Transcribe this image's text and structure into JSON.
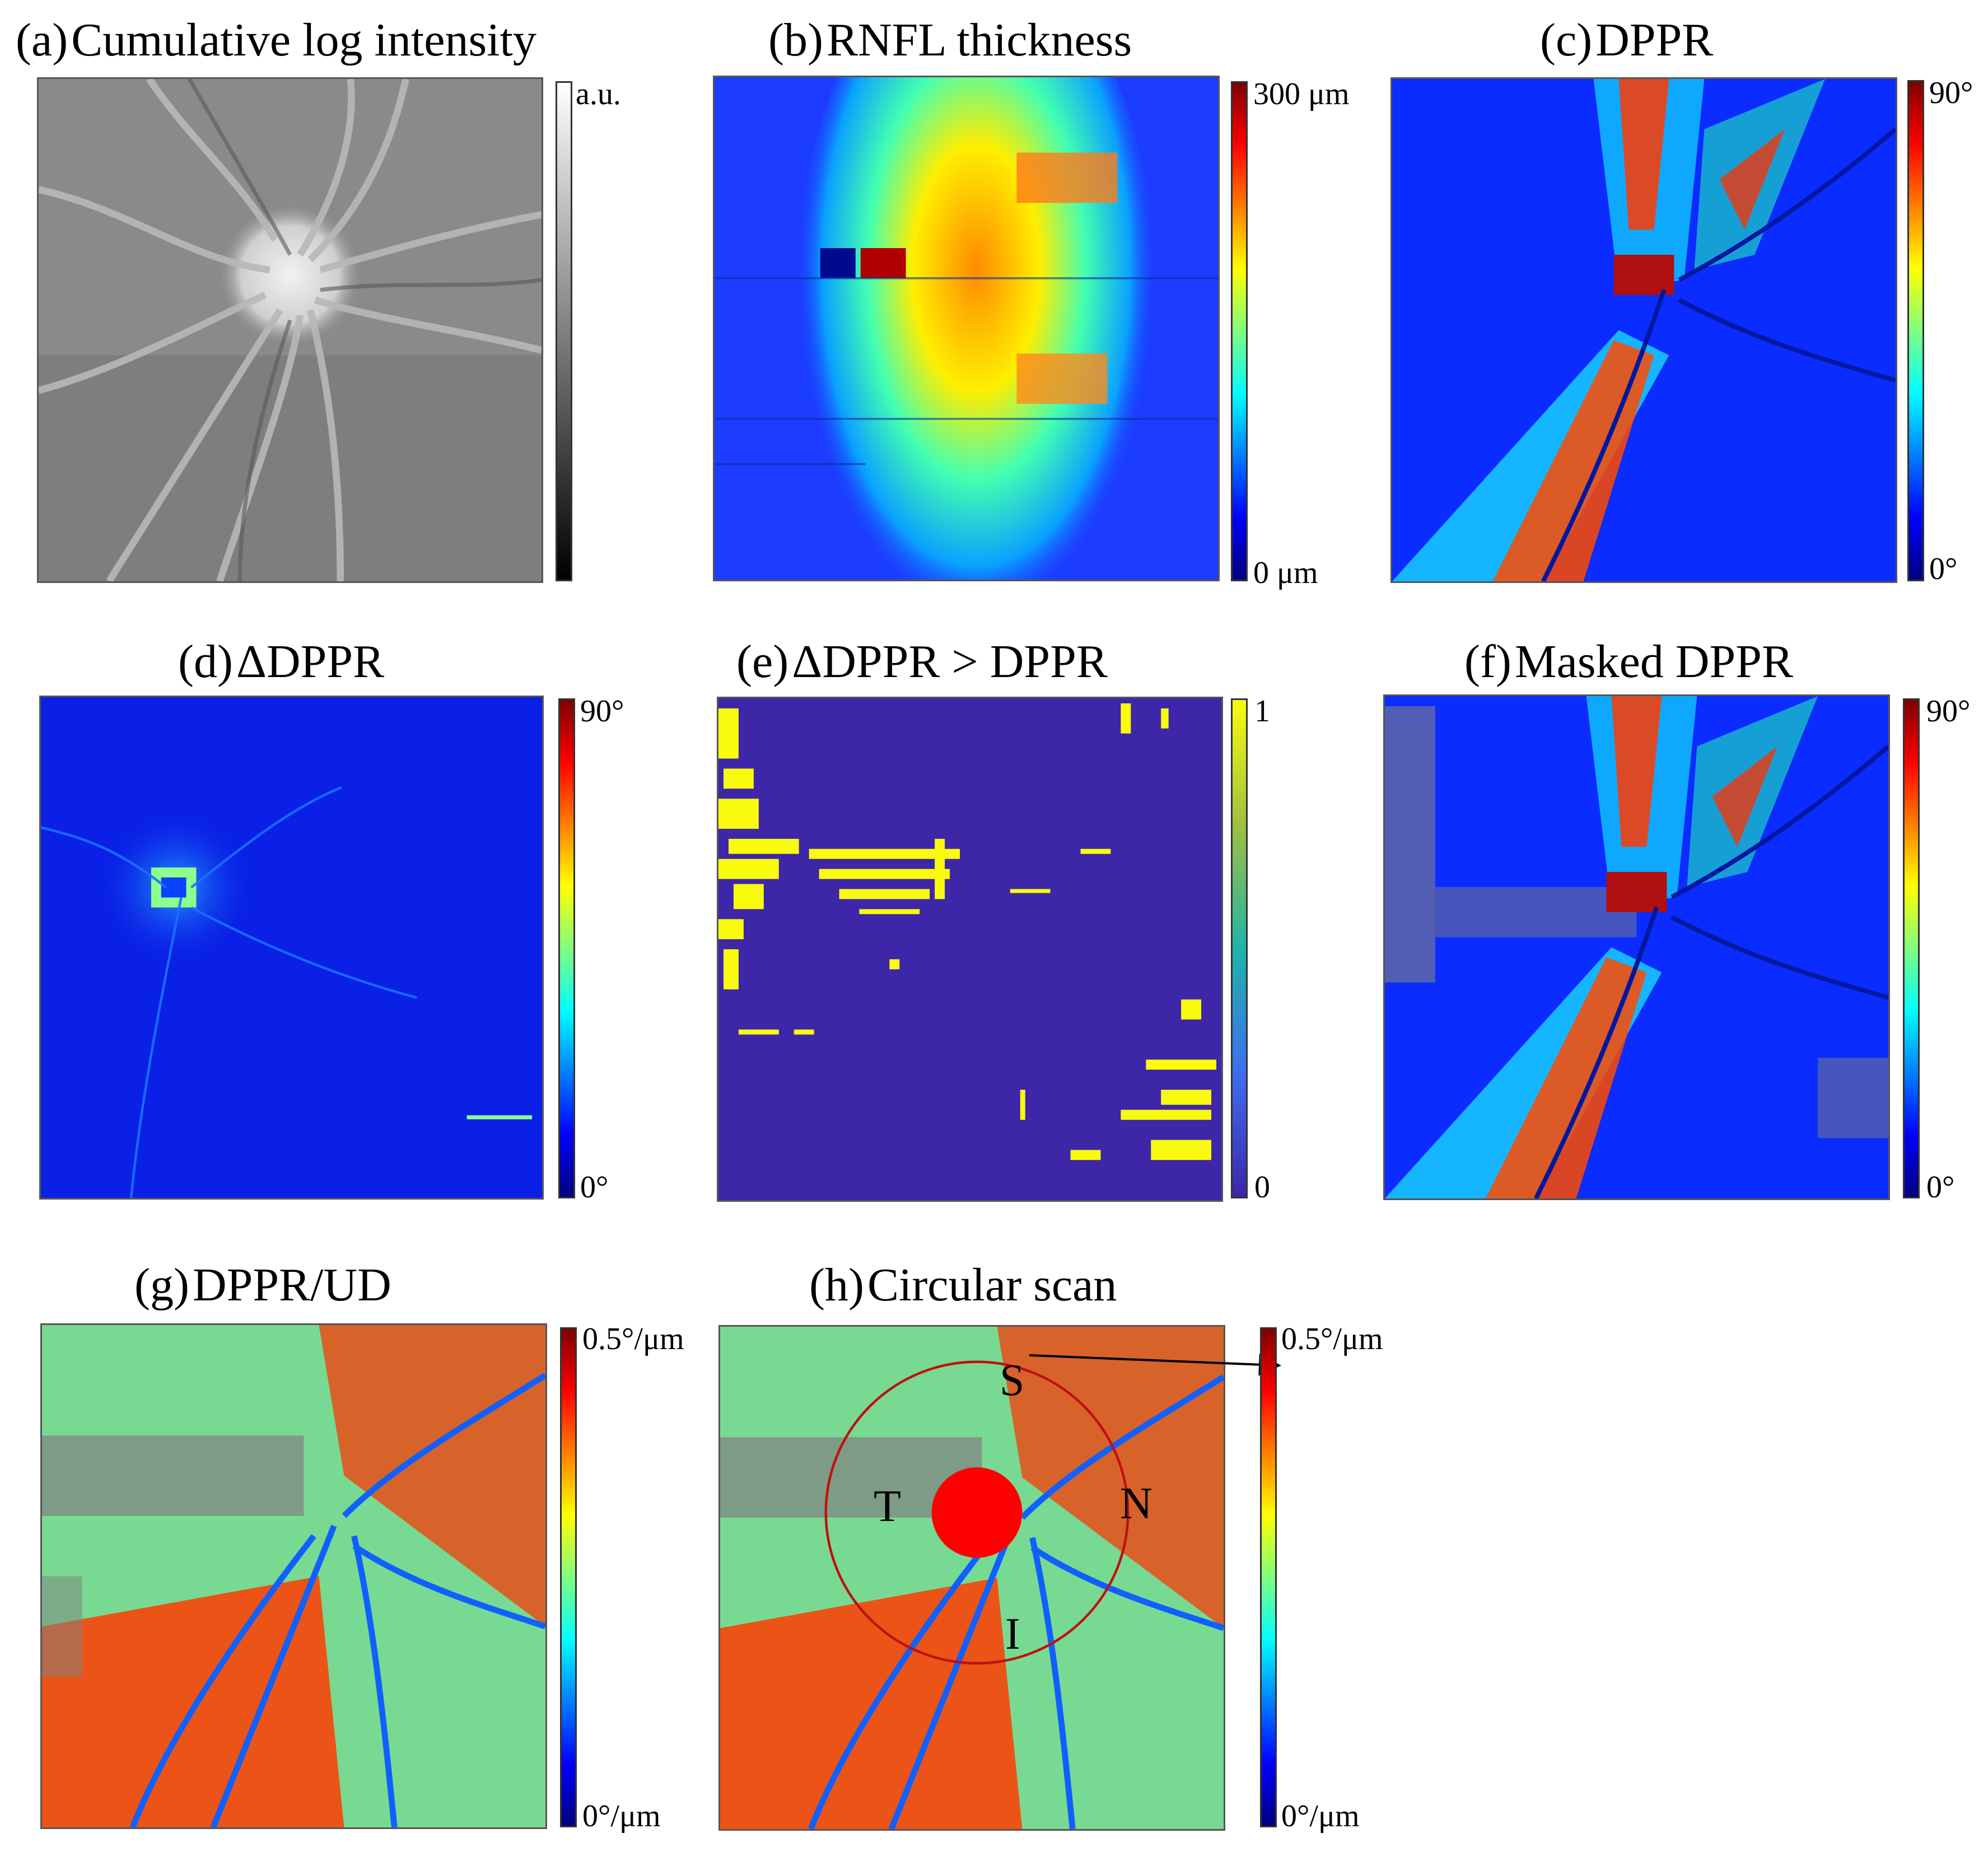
{
  "panels": {
    "a": {
      "letter": "(a)",
      "title": "Cumulative log intensity",
      "cbar_max": "a.u.",
      "cbar_min": ""
    },
    "b": {
      "letter": "(b)",
      "title": "RNFL thickness",
      "cbar_max": "300 μm",
      "cbar_min": "0 μm"
    },
    "c": {
      "letter": "(c)",
      "title": "DPPR",
      "cbar_max": "90°",
      "cbar_min": "0°"
    },
    "d": {
      "letter": "(d)",
      "title": "ΔDPPR",
      "cbar_max": "90°",
      "cbar_min": "0°"
    },
    "e": {
      "letter": "(e)",
      "title": "ΔDPPR  > DPPR",
      "cbar_max": "1",
      "cbar_min": "0"
    },
    "f": {
      "letter": "(f)",
      "title": "Masked DPPR",
      "cbar_max": "90°",
      "cbar_min": "0°"
    },
    "g": {
      "letter": "(g)",
      "title": "DPPR/UD",
      "cbar_max": "0.5°/μm",
      "cbar_min": "0°/μm"
    },
    "h": {
      "letter": "(h)",
      "title": "Circular scan",
      "cbar_max": "0.5°/μm",
      "cbar_min": "0°/μm",
      "quadrants": {
        "superior": "S",
        "temporal": "T",
        "nasal": "N",
        "inferior": "I"
      }
    }
  },
  "colors": {
    "jet": [
      "#00007f",
      "#0000ff",
      "#007fff",
      "#00ffff",
      "#7fff7f",
      "#ffff00",
      "#ff7f00",
      "#ff0000",
      "#7f0000"
    ],
    "gray": [
      "#000000",
      "#ffffff"
    ],
    "parula_low": "#3e26a8",
    "parula_high": "#f9fb0e",
    "mask_gray": "#808080",
    "onh_marker": "#ff0000"
  }
}
